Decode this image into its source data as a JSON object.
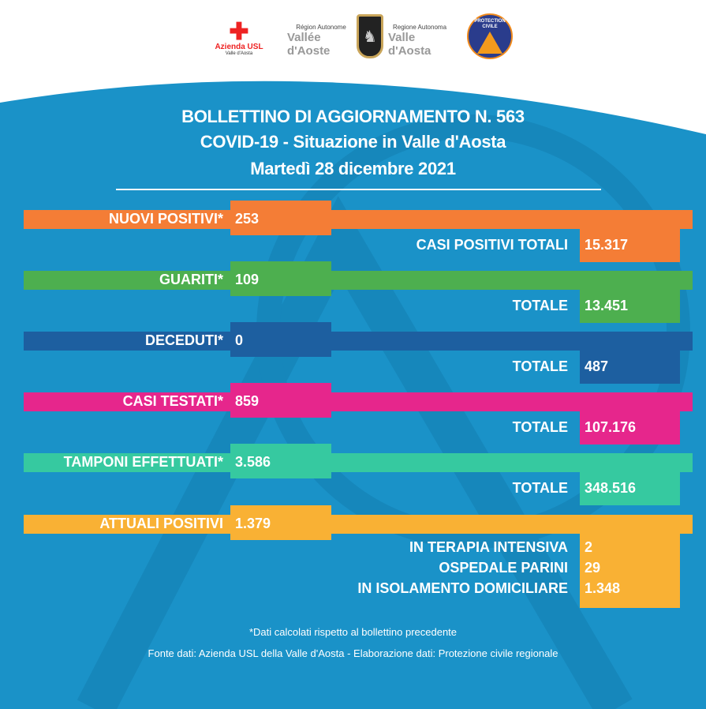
{
  "logos": {
    "asl": "Azienda USL",
    "asl_sub": "Valle d'Aosta",
    "region_fr_small": "Région Autonome",
    "region_fr": "Vallée d'Aoste",
    "region_it_small": "Regione Autonoma",
    "region_it": "Valle d'Aosta",
    "civil_protection": "Protection civile"
  },
  "header": {
    "line1": "BOLLETTINO DI AGGIORNAMENTO N. 563",
    "line2": "COVID-19 - Situazione in Valle d'Aosta",
    "line3": "Martedì 28 dicembre 2021"
  },
  "rows": [
    {
      "label": "NUOVI POSITIVI*",
      "value": "253",
      "total_label": "CASI POSITIVI TOTALI",
      "total": "15.317",
      "color": "#f47d36"
    },
    {
      "label": "GUARITI*",
      "value": "109",
      "total_label": "TOTALE",
      "total": "13.451",
      "color": "#4daf4f"
    },
    {
      "label": "DECEDUTI*",
      "value": "0",
      "total_label": "TOTALE",
      "total": "487",
      "color": "#1d5fa0"
    },
    {
      "label": "CASI TESTATI*",
      "value": "859",
      "total_label": "TOTALE",
      "total": "107.176",
      "color": "#e6268c"
    },
    {
      "label": "TAMPONI EFFETTUATI*",
      "value": "3.586",
      "total_label": "TOTALE",
      "total": "348.516",
      "color": "#36c9a0"
    },
    {
      "label": "ATTUALI POSITIVI",
      "value": "1.379",
      "color": "#f9b134"
    }
  ],
  "breakdown": [
    {
      "label": "IN TERAPIA INTENSIVA",
      "value": "2"
    },
    {
      "label": "OSPEDALE PARINI",
      "value": "29"
    },
    {
      "label": "IN ISOLAMENTO DOMICILIARE",
      "value": "1.348"
    }
  ],
  "footer": {
    "note": "*Dati calcolati rispetto al bollettino precedente",
    "source": "Fonte dati: Azienda USL della Valle d'Aosta - Elaborazione dati: Protezione civile regionale"
  }
}
